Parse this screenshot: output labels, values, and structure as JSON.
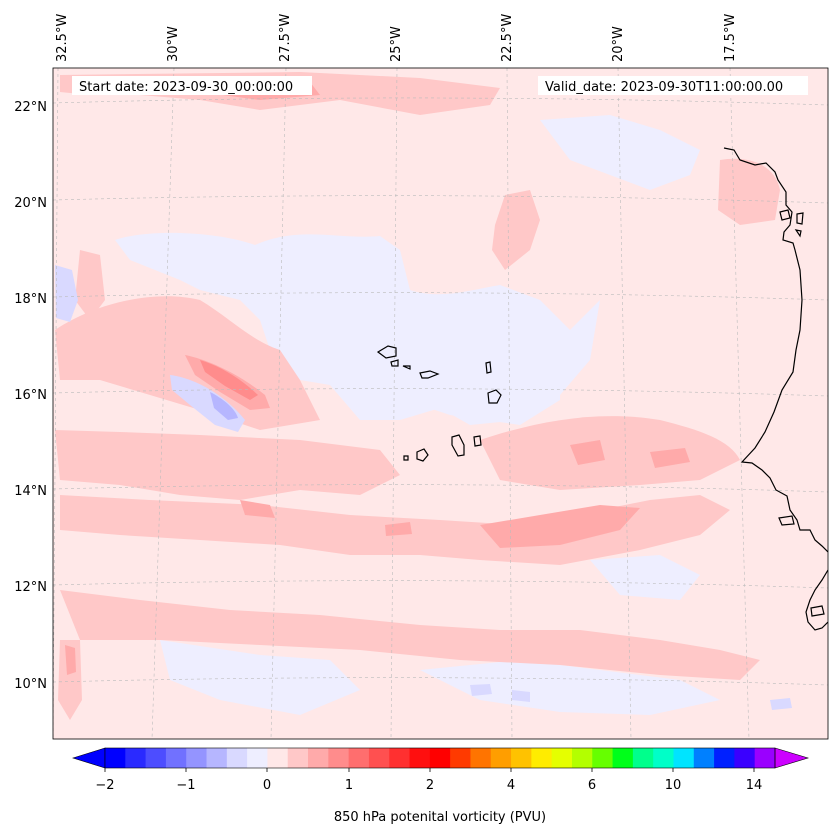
{
  "header": {
    "start_date": "Start date: 2023-09-30_00:00:00",
    "valid_date": "Valid_date: 2023-09-30T11:00:00.00"
  },
  "map": {
    "lon_labels": [
      "32.5°W",
      "30°W",
      "27.5°W",
      "25°W",
      "22.5°W",
      "20°W",
      "17.5°W"
    ],
    "lat_labels": [
      "22°N",
      "20°N",
      "18°N",
      "16°N",
      "14°N",
      "12°N",
      "10°N"
    ],
    "background_color": "#ffe8e8",
    "coastline_color": "#000000",
    "gridlines": true
  },
  "colorbar": {
    "label": "850 hPa potenital vorticity (PVU)",
    "tick_labels": [
      "−2",
      "−1",
      "0",
      "1",
      "2",
      "4",
      "6",
      "10",
      "14"
    ],
    "extend": "both",
    "colors": [
      "#0000ff",
      "#2a2aff",
      "#4d4dff",
      "#7171ff",
      "#9494ff",
      "#b6b6ff",
      "#d9d9ff",
      "#eeeeff",
      "#ffe8e8",
      "#ffc8c8",
      "#ffaaaa",
      "#ff8c8c",
      "#ff6e6e",
      "#ff5050",
      "#ff3030",
      "#ff0f0f",
      "#ff0000",
      "#ff3a00",
      "#ff7400",
      "#ff9e00",
      "#ffc200",
      "#ffec00",
      "#e5ff00",
      "#b3ff00",
      "#66ff00",
      "#00ff1a",
      "#00ff8c",
      "#00ffc8",
      "#00e4ff",
      "#0080ff",
      "#0020ff",
      "#3a00ff",
      "#9a00ff"
    ],
    "under_color": "#0000ff",
    "over_color": "#cc00ff"
  }
}
